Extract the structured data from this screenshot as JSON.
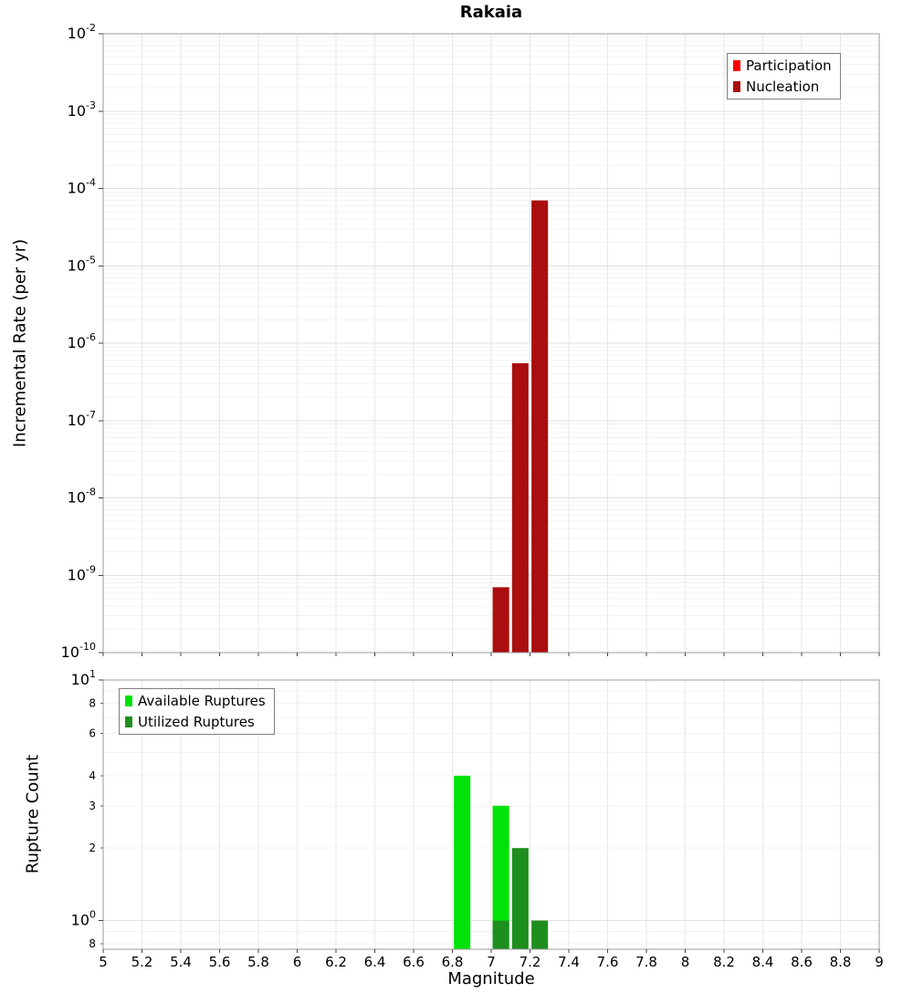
{
  "figure_title": "Rakaia",
  "chart_data": [
    {
      "type": "bar",
      "title": "Rakaia",
      "ylabel": "Incremental Rate (per yr)",
      "xlabel": "",
      "yscale": "log",
      "ylim": [
        1e-10,
        0.01
      ],
      "xlim": [
        5,
        9
      ],
      "xtick_step": 0.2,
      "grid": true,
      "legend_position": "top-right",
      "minor_tick_labels": false,
      "bar_width": 0.085,
      "series": [
        {
          "name": "Participation",
          "color": "#ff0000",
          "points": []
        },
        {
          "name": "Nucleation",
          "color": "#aa0e0e",
          "points": [
            {
              "x": 7.05,
              "y": 7e-10
            },
            {
              "x": 7.15,
              "y": 5.5e-07
            },
            {
              "x": 7.25,
              "y": 7e-05
            }
          ]
        }
      ]
    },
    {
      "type": "bar",
      "title": "",
      "ylabel": "Rupture Count",
      "xlabel": "Magnitude",
      "yscale": "log",
      "ylim": [
        0.76,
        10
      ],
      "xlim": [
        5,
        9
      ],
      "xtick_step": 0.2,
      "grid": true,
      "legend_position": "top-left",
      "minor_tick_labels": true,
      "bar_width": 0.085,
      "series": [
        {
          "name": "Available Ruptures",
          "color": "#00e308",
          "points": [
            {
              "x": 6.85,
              "y": 4
            },
            {
              "x": 7.05,
              "y": 3
            }
          ]
        },
        {
          "name": "Utilized Ruptures",
          "color": "#1e8f1e",
          "points": [
            {
              "x": 7.05,
              "y": 1
            },
            {
              "x": 7.15,
              "y": 2
            },
            {
              "x": 7.25,
              "y": 1
            }
          ]
        }
      ]
    }
  ]
}
